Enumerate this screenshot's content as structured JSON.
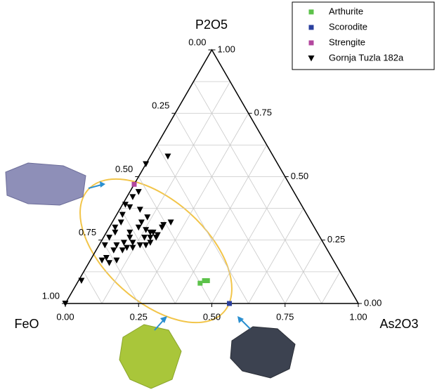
{
  "chart_data": {
    "type": "ternary",
    "top_label": "P2O5",
    "left_label": "FeO",
    "right_label": "As2O3",
    "grid": true,
    "grid_divisions": 8,
    "legend": "upper right",
    "bottom_ticks": [
      {
        "value": 0,
        "label": "0.00"
      },
      {
        "value": 0.25,
        "label": "0.25"
      },
      {
        "value": 0.5,
        "label": "0.50"
      },
      {
        "value": 0.75,
        "label": "0.75"
      },
      {
        "value": 1,
        "label": "1.00"
      }
    ],
    "left_ticks": [
      {
        "value": 0,
        "label": "0.00"
      },
      {
        "value": 0.25,
        "label": "0.25"
      },
      {
        "value": 0.5,
        "label": "0.50"
      },
      {
        "value": 0.75,
        "label": "0.75"
      },
      {
        "value": 1,
        "label": "1.00"
      }
    ],
    "right_ticks": [
      {
        "value": 0,
        "label": "0.00"
      },
      {
        "value": 0.25,
        "label": "0.25"
      },
      {
        "value": 0.5,
        "label": "0.50"
      },
      {
        "value": 0.75,
        "label": "0.75"
      },
      {
        "value": 1,
        "label": "1.00"
      }
    ],
    "series": [
      {
        "name": "Arthurite",
        "color": "#5cc24a",
        "marker": "square",
        "as2o3": [
          0.42,
          0.43,
          0.44
        ],
        "p2o5": [
          0.08,
          0.09,
          0.09
        ]
      },
      {
        "name": "Scorodite",
        "color": "#2a3f9e",
        "marker": "square",
        "as2o3": [
          0.56
        ],
        "p2o5": [
          0
        ]
      },
      {
        "name": "Strengite",
        "color": "#b3479e",
        "marker": "square",
        "as2o3": [
          0
        ],
        "p2o5": [
          0.47
        ]
      },
      {
        "name": "Gornja Tuzla 182a",
        "color": "#000000",
        "marker": "triangle-down",
        "as2o3": [
          0,
          0.01,
          0.04,
          0.05,
          0.06,
          0.02,
          0.02,
          0.03,
          0.02,
          0.03,
          0.02,
          0.03,
          0.01,
          0.02,
          0.03,
          0,
          0.06,
          0.09,
          0.1,
          0.12,
          0.14,
          0.16,
          0.17,
          0.18,
          0.18,
          0.18,
          0.18,
          0.2,
          0.14,
          0.16,
          0.16,
          0.13,
          0.08,
          0.1,
          0.1,
          0.11,
          0.09,
          0.06,
          0.08,
          0.11,
          0.09,
          0.07,
          0.07,
          0.15
        ],
        "p2o5": [
          0,
          0.09,
          0.17,
          0.18,
          0.21,
          0.23,
          0.26,
          0.28,
          0.3,
          0.32,
          0.35,
          0.38,
          0.39,
          0.42,
          0.44,
          0.55,
          0.58,
          0.21,
          0.22,
          0.22,
          0.23,
          0.23,
          0.24,
          0.26,
          0.27,
          0.3,
          0.31,
          0.32,
          0.26,
          0.26,
          0.28,
          0.29,
          0.28,
          0.3,
          0.32,
          0.34,
          0.26,
          0.23,
          0.24,
          0.24,
          0.17,
          0.16,
          0.37,
          0.28
        ]
      }
    ]
  }
}
